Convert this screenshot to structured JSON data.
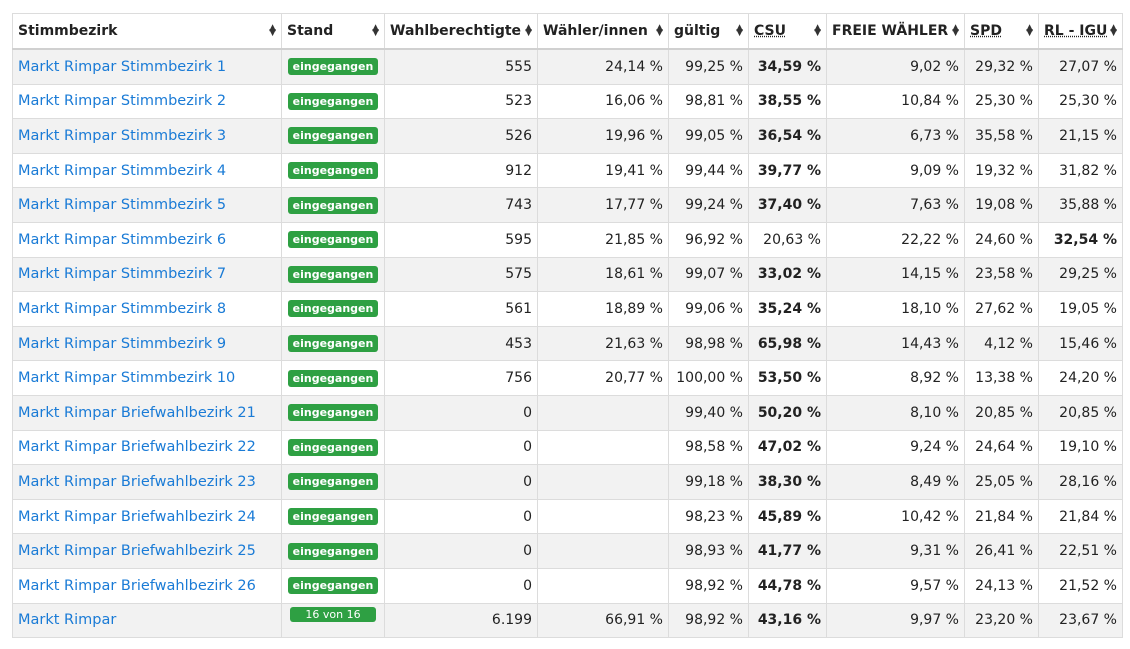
{
  "headers": [
    {
      "key": "stimmbezirk",
      "label": "Stimmbezirk",
      "underline": false
    },
    {
      "key": "stand",
      "label": "Stand",
      "underline": false
    },
    {
      "key": "wahlberechtigte",
      "label": "Wahlberechtigte",
      "underline": false
    },
    {
      "key": "waehler",
      "label": "Wähler/innen",
      "underline": false
    },
    {
      "key": "gueltig",
      "label": "gültig",
      "underline": false
    },
    {
      "key": "csu",
      "label": "CSU",
      "underline": true
    },
    {
      "key": "fw",
      "label": "FREIE WÄHLER",
      "underline": false
    },
    {
      "key": "spd",
      "label": "SPD",
      "underline": true
    },
    {
      "key": "rl",
      "label": "RL - IGU",
      "underline": true
    }
  ],
  "rows": [
    {
      "name": "Markt Rimpar Stimmbezirk 1",
      "stand": "eingegangen",
      "wahlberechtigte": "555",
      "waehler": "24,14 %",
      "gueltig": "99,25 %",
      "csu": "34,59 %",
      "fw": "9,02 %",
      "spd": "29,32 %",
      "rl": "27,07 %",
      "winner": "csu"
    },
    {
      "name": "Markt Rimpar Stimmbezirk 2",
      "stand": "eingegangen",
      "wahlberechtigte": "523",
      "waehler": "16,06 %",
      "gueltig": "98,81 %",
      "csu": "38,55 %",
      "fw": "10,84 %",
      "spd": "25,30 %",
      "rl": "25,30 %",
      "winner": "csu"
    },
    {
      "name": "Markt Rimpar Stimmbezirk 3",
      "stand": "eingegangen",
      "wahlberechtigte": "526",
      "waehler": "19,96 %",
      "gueltig": "99,05 %",
      "csu": "36,54 %",
      "fw": "6,73 %",
      "spd": "35,58 %",
      "rl": "21,15 %",
      "winner": "csu"
    },
    {
      "name": "Markt Rimpar Stimmbezirk 4",
      "stand": "eingegangen",
      "wahlberechtigte": "912",
      "waehler": "19,41 %",
      "gueltig": "99,44 %",
      "csu": "39,77 %",
      "fw": "9,09 %",
      "spd": "19,32 %",
      "rl": "31,82 %",
      "winner": "csu"
    },
    {
      "name": "Markt Rimpar Stimmbezirk 5",
      "stand": "eingegangen",
      "wahlberechtigte": "743",
      "waehler": "17,77 %",
      "gueltig": "99,24 %",
      "csu": "37,40 %",
      "fw": "7,63 %",
      "spd": "19,08 %",
      "rl": "35,88 %",
      "winner": "csu"
    },
    {
      "name": "Markt Rimpar Stimmbezirk 6",
      "stand": "eingegangen",
      "wahlberechtigte": "595",
      "waehler": "21,85 %",
      "gueltig": "96,92 %",
      "csu": "20,63 %",
      "fw": "22,22 %",
      "spd": "24,60 %",
      "rl": "32,54 %",
      "winner": "rl"
    },
    {
      "name": "Markt Rimpar Stimmbezirk 7",
      "stand": "eingegangen",
      "wahlberechtigte": "575",
      "waehler": "18,61 %",
      "gueltig": "99,07 %",
      "csu": "33,02 %",
      "fw": "14,15 %",
      "spd": "23,58 %",
      "rl": "29,25 %",
      "winner": "csu"
    },
    {
      "name": "Markt Rimpar Stimmbezirk 8",
      "stand": "eingegangen",
      "wahlberechtigte": "561",
      "waehler": "18,89 %",
      "gueltig": "99,06 %",
      "csu": "35,24 %",
      "fw": "18,10 %",
      "spd": "27,62 %",
      "rl": "19,05 %",
      "winner": "csu"
    },
    {
      "name": "Markt Rimpar Stimmbezirk 9",
      "stand": "eingegangen",
      "wahlberechtigte": "453",
      "waehler": "21,63 %",
      "gueltig": "98,98 %",
      "csu": "65,98 %",
      "fw": "14,43 %",
      "spd": "4,12 %",
      "rl": "15,46 %",
      "winner": "csu"
    },
    {
      "name": "Markt Rimpar Stimmbezirk 10",
      "stand": "eingegangen",
      "wahlberechtigte": "756",
      "waehler": "20,77 %",
      "gueltig": "100,00 %",
      "csu": "53,50 %",
      "fw": "8,92 %",
      "spd": "13,38 %",
      "rl": "24,20 %",
      "winner": "csu"
    },
    {
      "name": "Markt Rimpar Briefwahlbezirk 21",
      "stand": "eingegangen",
      "wahlberechtigte": "0",
      "waehler": "",
      "gueltig": "99,40 %",
      "csu": "50,20 %",
      "fw": "8,10 %",
      "spd": "20,85 %",
      "rl": "20,85 %",
      "winner": "csu"
    },
    {
      "name": "Markt Rimpar Briefwahlbezirk 22",
      "stand": "eingegangen",
      "wahlberechtigte": "0",
      "waehler": "",
      "gueltig": "98,58 %",
      "csu": "47,02 %",
      "fw": "9,24 %",
      "spd": "24,64 %",
      "rl": "19,10 %",
      "winner": "csu"
    },
    {
      "name": "Markt Rimpar Briefwahlbezirk 23",
      "stand": "eingegangen",
      "wahlberechtigte": "0",
      "waehler": "",
      "gueltig": "99,18 %",
      "csu": "38,30 %",
      "fw": "8,49 %",
      "spd": "25,05 %",
      "rl": "28,16 %",
      "winner": "csu"
    },
    {
      "name": "Markt Rimpar Briefwahlbezirk 24",
      "stand": "eingegangen",
      "wahlberechtigte": "0",
      "waehler": "",
      "gueltig": "98,23 %",
      "csu": "45,89 %",
      "fw": "10,42 %",
      "spd": "21,84 %",
      "rl": "21,84 %",
      "winner": "csu"
    },
    {
      "name": "Markt Rimpar Briefwahlbezirk 25",
      "stand": "eingegangen",
      "wahlberechtigte": "0",
      "waehler": "",
      "gueltig": "98,93 %",
      "csu": "41,77 %",
      "fw": "9,31 %",
      "spd": "26,41 %",
      "rl": "22,51 %",
      "winner": "csu"
    },
    {
      "name": "Markt Rimpar Briefwahlbezirk 26",
      "stand": "eingegangen",
      "wahlberechtigte": "0",
      "waehler": "",
      "gueltig": "98,92 %",
      "csu": "44,78 %",
      "fw": "9,57 %",
      "spd": "24,13 %",
      "rl": "21,52 %",
      "winner": "csu"
    }
  ],
  "total": {
    "name": "Markt Rimpar",
    "stand": "16 von 16",
    "wahlberechtigte": "6.199",
    "waehler": "66,91 %",
    "gueltig": "98,92 %",
    "csu": "43,16 %",
    "fw": "9,97 %",
    "spd": "23,20 %",
    "rl": "23,67 %",
    "winner": "csu"
  },
  "colors": {
    "link": "#1a7bd6",
    "badge": "#2ea043",
    "stripe": "#f2f2f2"
  }
}
